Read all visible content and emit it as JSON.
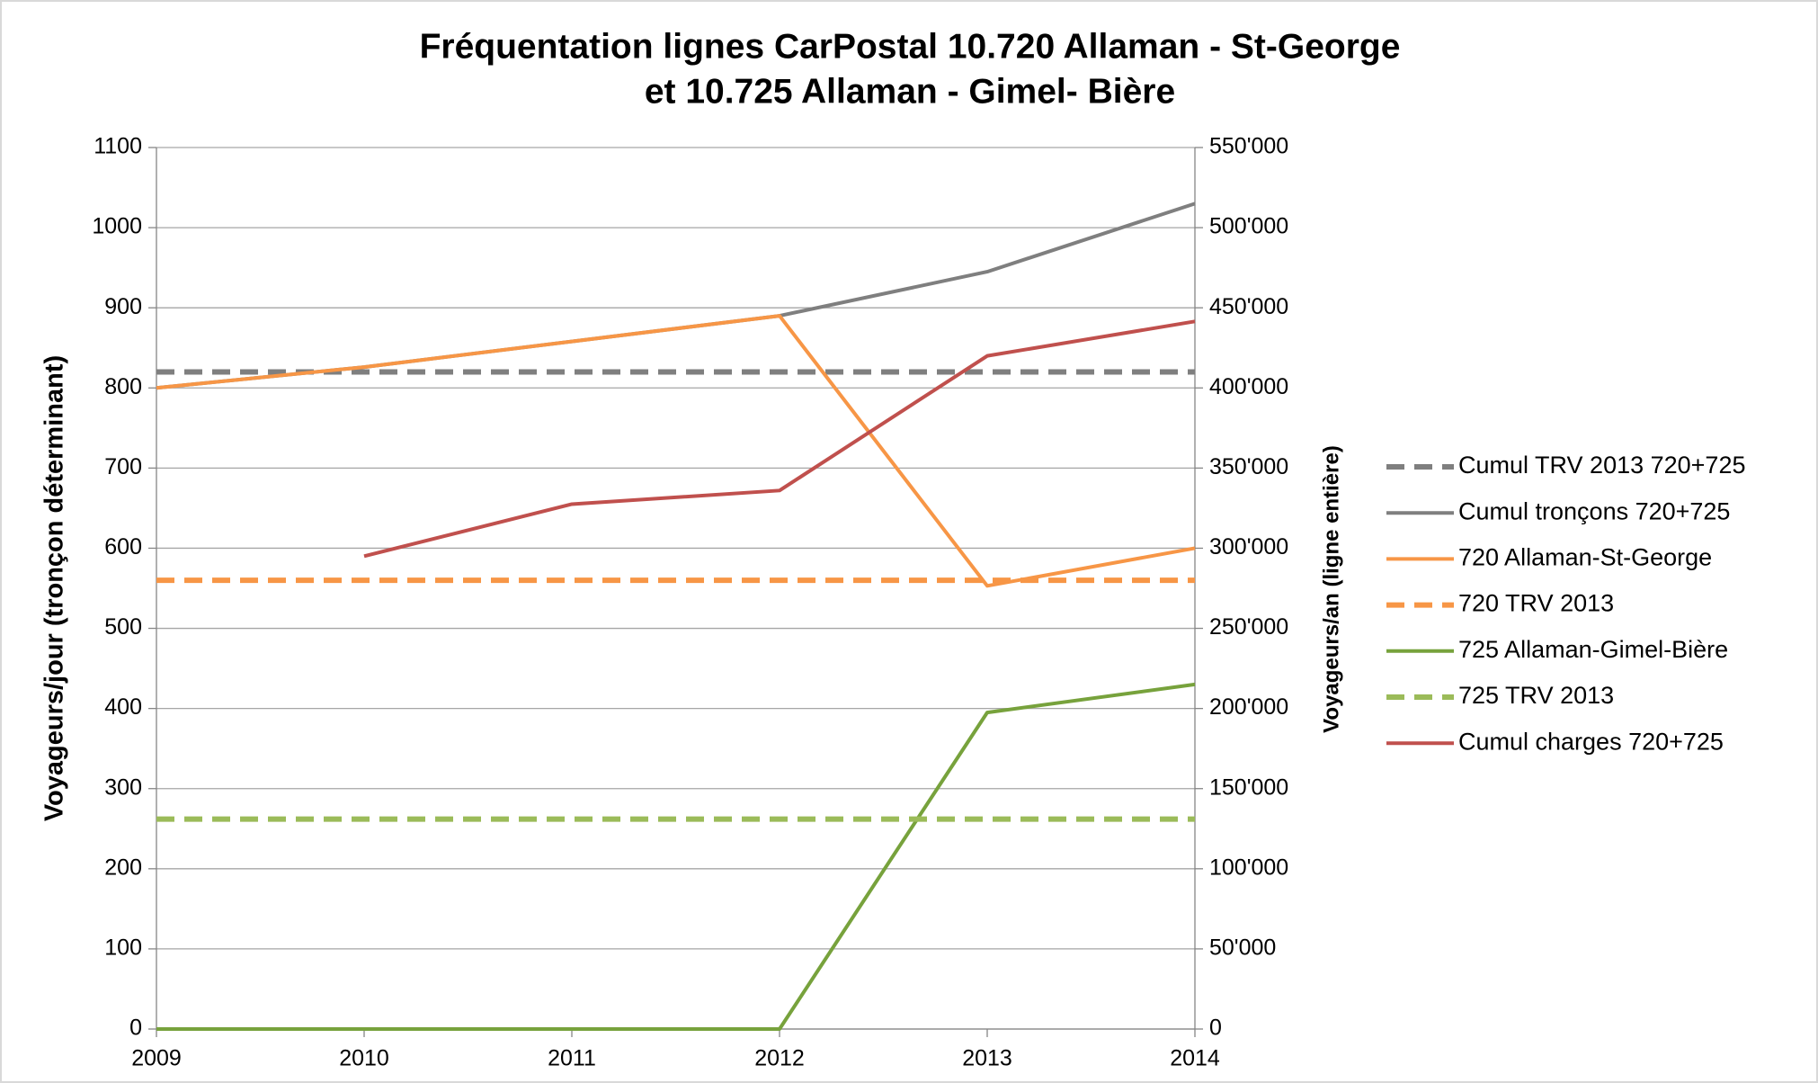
{
  "chart_data": {
    "type": "line",
    "title": [
      "Fréquentation lignes CarPostal 10.720 Allaman - St-George",
      "et 10.725 Allaman - Gimel- Bière"
    ],
    "y_label": "Voyageurs/jour (tronçon déterminant)",
    "y2_label": "Voyageurs/an (ligne entière)",
    "x": [
      2009,
      2010,
      2011,
      2012,
      2013,
      2014
    ],
    "xlim": [
      2009,
      2014
    ],
    "xticks": [
      2009,
      2010,
      2011,
      2012,
      2013,
      2014
    ],
    "ylim": [
      0,
      1100
    ],
    "yticks": [
      0,
      100,
      200,
      300,
      400,
      500,
      600,
      700,
      800,
      900,
      1000,
      1100
    ],
    "y2lim": [
      0,
      550000
    ],
    "y2ticks": [
      {
        "value": 0,
        "label": "0"
      },
      {
        "value": 50000,
        "label": "50'000"
      },
      {
        "value": 100000,
        "label": "100'000"
      },
      {
        "value": 150000,
        "label": "150'000"
      },
      {
        "value": 200000,
        "label": "200'000"
      },
      {
        "value": 250000,
        "label": "250'000"
      },
      {
        "value": 300000,
        "label": "300'000"
      },
      {
        "value": 350000,
        "label": "350'000"
      },
      {
        "value": 400000,
        "label": "400'000"
      },
      {
        "value": 450000,
        "label": "450'000"
      },
      {
        "value": 500000,
        "label": "500'000"
      },
      {
        "value": 550000,
        "label": "550'000"
      }
    ],
    "grid": true,
    "legend": "right",
    "series": [
      {
        "name": "Cumul TRV 2013 720+725",
        "color": "#7f7f7f",
        "dashed": true,
        "values": [
          820,
          820,
          820,
          820,
          820,
          820
        ]
      },
      {
        "name": "Cumul tronçons 720+725",
        "color": "#7f7f7f",
        "dashed": false,
        "values": [
          800,
          826,
          858,
          890,
          945,
          1030
        ]
      },
      {
        "name": "720 Allaman-St-George",
        "color": "#f79646",
        "dashed": false,
        "values": [
          800,
          826,
          858,
          890,
          553,
          600
        ]
      },
      {
        "name": "720 TRV 2013",
        "color": "#f79646",
        "dashed": true,
        "values": [
          560,
          560,
          560,
          560,
          560,
          560
        ]
      },
      {
        "name": "725 Allaman-Gimel-Bière",
        "color": "#77a23c",
        "dashed": false,
        "values": [
          0,
          0,
          0,
          0,
          395,
          430
        ]
      },
      {
        "name": "725 TRV 2013",
        "color": "#9bbb59",
        "dashed": true,
        "values": [
          262,
          262,
          262,
          262,
          262,
          262
        ]
      },
      {
        "name": "Cumul charges 720+725",
        "color": "#c0504d",
        "dashed": false,
        "values": [
          null,
          590,
          655,
          672,
          840,
          883
        ]
      }
    ]
  }
}
